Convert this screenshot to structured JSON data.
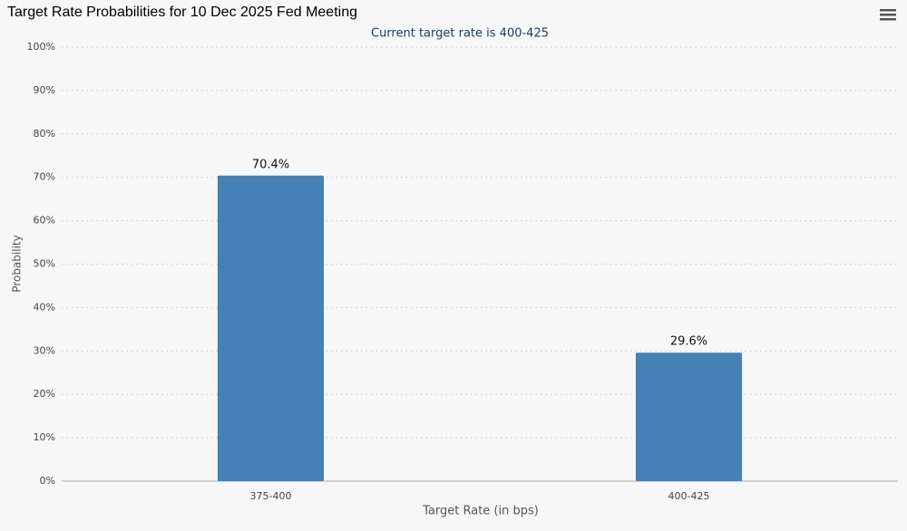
{
  "chart_data": {
    "type": "bar",
    "title": "Target Rate Probabilities for 10 Dec 2025 Fed Meeting",
    "subtitle": "Current target rate is 400-425",
    "x_label": "Target Rate (in bps)",
    "y_label": "Probability",
    "categories": [
      "375-400",
      "400-425"
    ],
    "values": [
      70.4,
      29.6
    ],
    "value_labels": [
      "70.4%",
      "29.6%"
    ],
    "color": "#4581b7",
    "ylim": [
      0,
      100
    ],
    "yticks": [
      {
        "value": 0,
        "label": "0%"
      },
      {
        "value": 10,
        "label": "10%"
      },
      {
        "value": 20,
        "label": "20%"
      },
      {
        "value": 30,
        "label": "30%"
      },
      {
        "value": 40,
        "label": "40%"
      },
      {
        "value": 50,
        "label": "50%"
      },
      {
        "value": 60,
        "label": "60%"
      },
      {
        "value": 70,
        "label": "70%"
      },
      {
        "value": 80,
        "label": "80%"
      },
      {
        "value": 90,
        "label": "90%"
      },
      {
        "value": 100,
        "label": "100%"
      }
    ],
    "grid": true
  }
}
